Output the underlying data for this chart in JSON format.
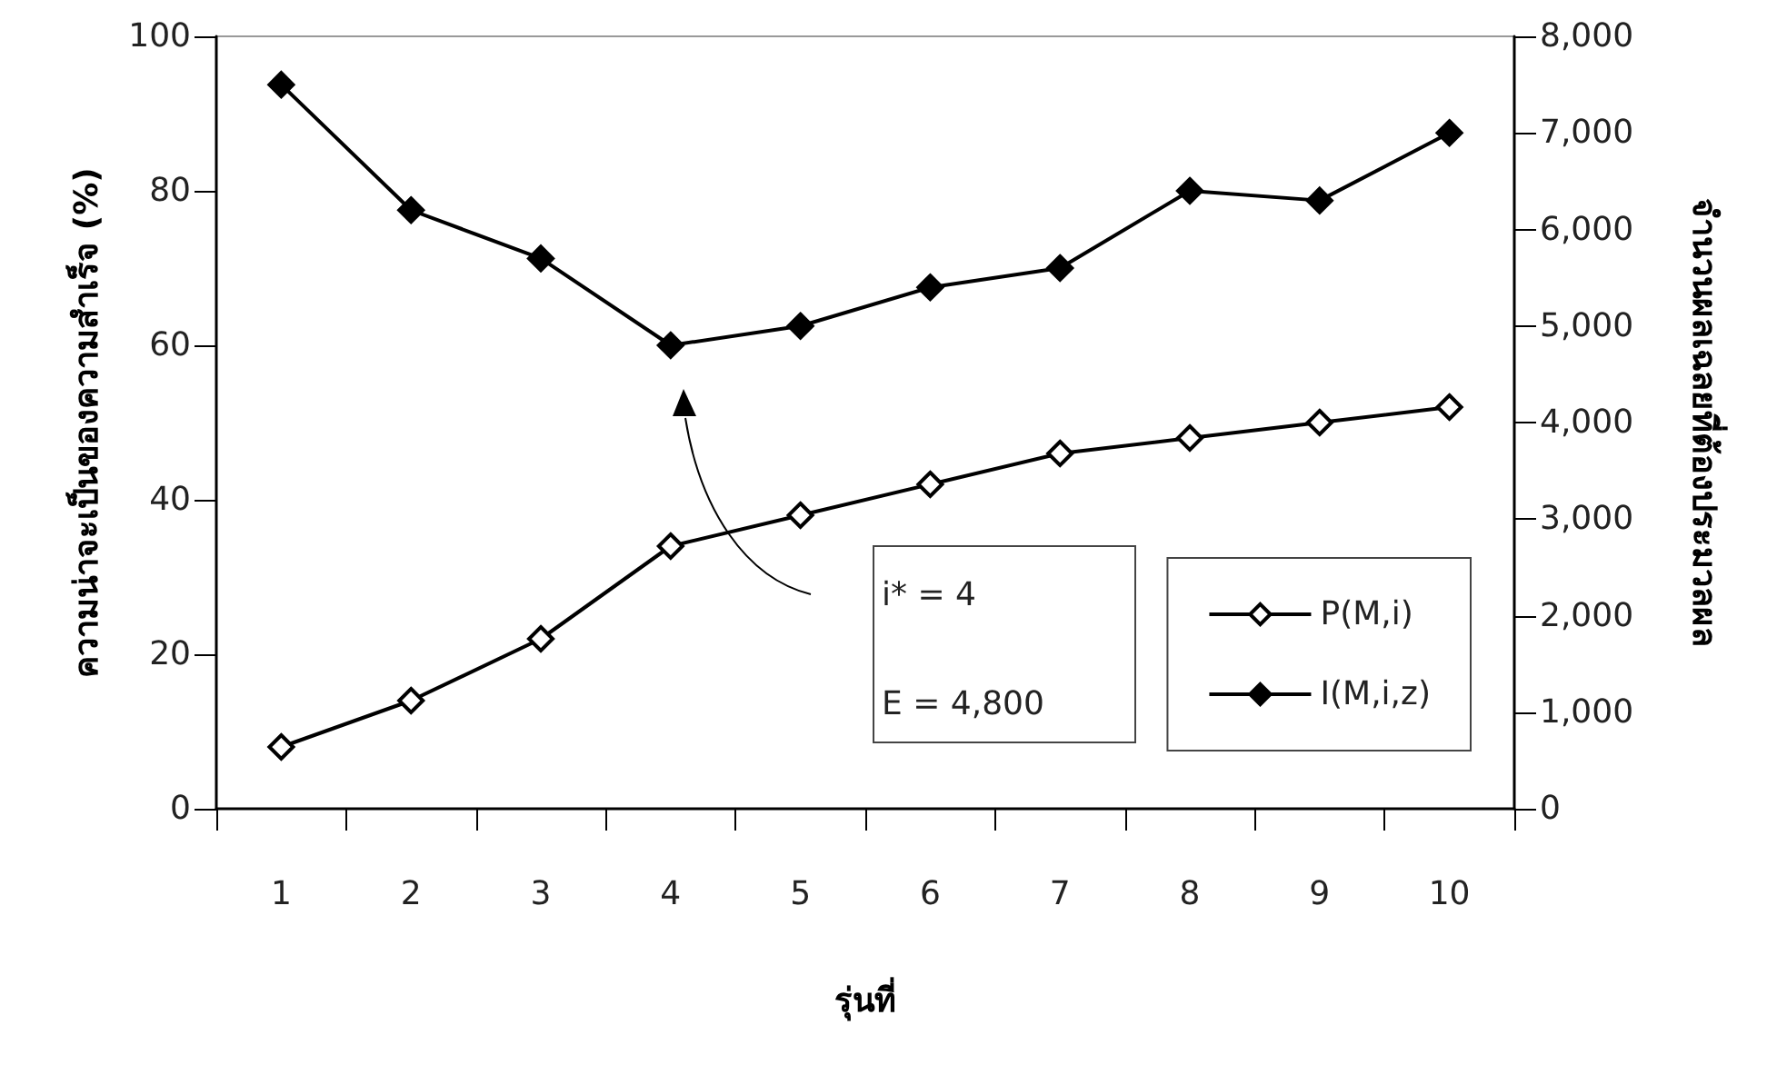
{
  "chart_data": {
    "type": "line",
    "xlabel": "รุ่นที่",
    "ylabel": "ความน่าจะเป็นของความสำเร็จ (%)",
    "y2label": "จำนวนผลเฉลยที่ต้องประมวลผล",
    "categories": [
      "1",
      "2",
      "3",
      "4",
      "5",
      "6",
      "7",
      "8",
      "9",
      "10"
    ],
    "series": [
      {
        "name": "P(M,i)",
        "color": "#000000",
        "values": [
          8,
          14,
          22,
          34,
          38,
          42,
          46,
          48,
          50,
          52
        ]
      },
      {
        "name": "I(M,i,z)",
        "color": "#000000",
        "axis": "y2",
        "values": [
          7500,
          6200,
          5700,
          4800,
          5000,
          5400,
          5600,
          6400,
          6300,
          7000
        ]
      }
    ],
    "ylim": [
      0,
      100
    ],
    "yticks": [
      0,
      20,
      40,
      60,
      80,
      100
    ],
    "y2lim": [
      0,
      8000
    ],
    "y2ticks": [
      {
        "value": 0,
        "label": "0"
      },
      {
        "value": 1000,
        "label": "1,000"
      },
      {
        "value": 2000,
        "label": "2,000"
      },
      {
        "value": 3000,
        "label": "3,000"
      },
      {
        "value": 4000,
        "label": "4,000"
      },
      {
        "value": 5000,
        "label": "5,000"
      },
      {
        "value": 6000,
        "label": "6,000"
      },
      {
        "value": 7000,
        "label": "7,000"
      },
      {
        "value": 8000,
        "label": "8,000"
      }
    ],
    "annotations": [
      "i* = 4",
      "E = 4,800"
    ],
    "grid": false,
    "legend": "bottom right",
    "marker": "diamond",
    "line_style": "solid"
  }
}
